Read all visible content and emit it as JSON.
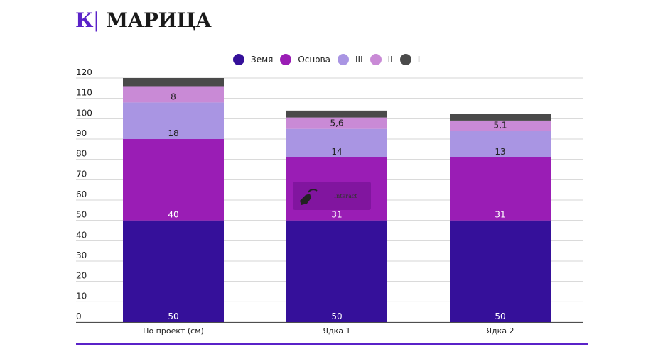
{
  "logo": {
    "mark": "К",
    "name": "МАРИЦА"
  },
  "overlay": {
    "interact_label": "Interact"
  },
  "chart_data": {
    "type": "bar",
    "stacked": true,
    "categories": [
      "По проект (см)",
      "Ядка 1",
      "Ядка 2"
    ],
    "series": [
      {
        "name": "Земя",
        "color": "#35109a",
        "values": [
          50,
          50,
          50
        ],
        "labels": [
          "50",
          "50",
          "50"
        ],
        "label_color": "#ffffff"
      },
      {
        "name": "Основа",
        "color": "#9a1db5",
        "values": [
          40,
          31,
          31
        ],
        "labels": [
          "40",
          "31",
          "31"
        ],
        "label_color": "#ffffff"
      },
      {
        "name": "III",
        "color": "#a995e3",
        "values": [
          18,
          14,
          13
        ],
        "labels": [
          "18",
          "14",
          "13"
        ],
        "label_color": "#222222"
      },
      {
        "name": "II",
        "color": "#c98ad6",
        "values": [
          8,
          5.6,
          5.1
        ],
        "labels": [
          "8",
          "5,6",
          "5,1"
        ],
        "label_color": "#222222"
      },
      {
        "name": "I",
        "color": "#4a4a4a",
        "values": [
          4,
          3.4,
          3.4
        ],
        "labels": [
          "",
          "",
          ""
        ],
        "label_color": "#ffffff"
      }
    ],
    "ylim": [
      0,
      120
    ],
    "yticks": [
      0,
      10,
      20,
      30,
      40,
      50,
      60,
      70,
      80,
      90,
      100,
      110,
      120
    ],
    "grid": true,
    "legend": "top"
  }
}
